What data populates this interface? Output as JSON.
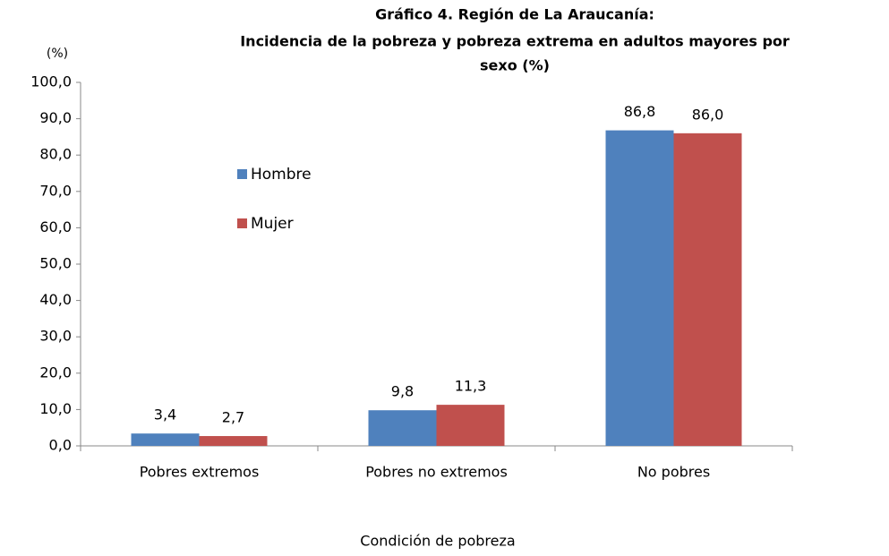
{
  "chart_data": {
    "type": "bar",
    "title": [
      "Gráfico 4. Región de La Araucanía:",
      "Incidencia de la pobreza y pobreza extrema en adultos mayores por",
      "sexo (%)"
    ],
    "y_label": "(%)",
    "x_label": "Condición de pobreza",
    "categories": [
      "Pobres extremos",
      "Pobres no extremos",
      "No pobres"
    ],
    "series": [
      {
        "name": "Hombre",
        "color": "#4f81bd",
        "values": [
          3.4,
          9.8,
          86.8
        ],
        "value_labels": [
          "3,4",
          "9,8",
          "86,8"
        ]
      },
      {
        "name": "Mujer",
        "color": "#c0504d",
        "values": [
          2.7,
          11.3,
          86.0
        ],
        "value_labels": [
          "2,7",
          "11,3",
          "86,0"
        ]
      }
    ],
    "ylim": [
      0,
      100
    ],
    "yticks": [
      {
        "value": 0,
        "label": "0,0"
      },
      {
        "value": 10,
        "label": "10,0"
      },
      {
        "value": 20,
        "label": "20,0"
      },
      {
        "value": 30,
        "label": "30,0"
      },
      {
        "value": 40,
        "label": "40,0"
      },
      {
        "value": 50,
        "label": "50,0"
      },
      {
        "value": 60,
        "label": "60,0"
      },
      {
        "value": 70,
        "label": "70,0"
      },
      {
        "value": 80,
        "label": "80,0"
      },
      {
        "value": 90,
        "label": "90,0"
      },
      {
        "value": 100,
        "label": "100,0"
      }
    ],
    "grid": false,
    "legend": "left"
  }
}
